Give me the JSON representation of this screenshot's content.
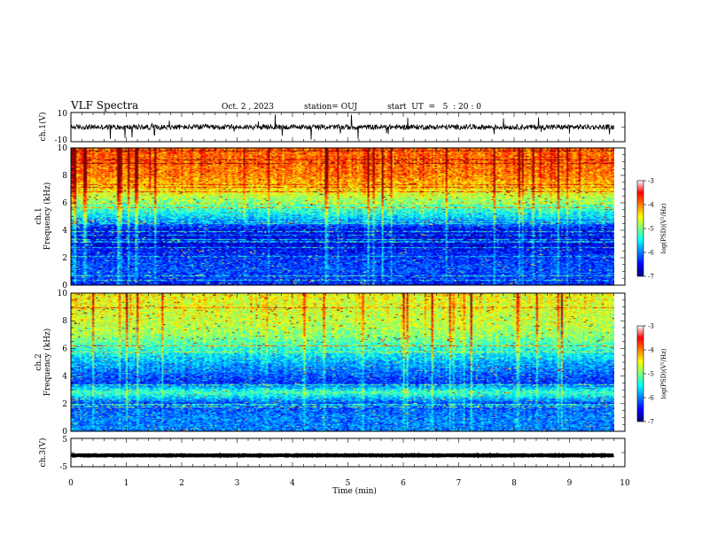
{
  "header": {
    "title": "VLF Spectra",
    "date": "Oct. 2 , 2023",
    "station": "station= OUJ",
    "start": "start  UT  =   5  : 20 : 0"
  },
  "chart_data": {
    "type": "heatmap",
    "xlabel": "Time  (min)",
    "xlim": [
      0,
      10
    ],
    "xticks": [
      "0",
      "1",
      "2",
      "3",
      "4",
      "5",
      "6",
      "7",
      "8",
      "9",
      "10"
    ],
    "data_end_min": 9.8,
    "panels": [
      {
        "name": "ch1-waveform",
        "type": "line",
        "ylabel": "ch.1(V)",
        "ylim": [
          -10,
          10
        ],
        "yticks": [
          "10",
          "-10"
        ],
        "baseline_v": 0
      },
      {
        "name": "ch1-spectrogram",
        "type": "heatmap",
        "ylabel_line1": "ch.1",
        "ylabel_line2": "Frequency  (kHz)",
        "ylim": [
          0,
          10
        ],
        "yticks": [
          "0",
          "2",
          "4",
          "6",
          "8",
          "10"
        ],
        "colorbar_label": "log(PSD)(V²/Hz)",
        "colorbar_range": [
          -7,
          -3
        ],
        "colorbar_ticks": [
          "-3",
          "-4",
          "-5",
          "-6",
          "-7"
        ],
        "spectral_profile": [
          {
            "f_khz": 0.0,
            "level": -6.4
          },
          {
            "f_khz": 1.0,
            "level": -6.2
          },
          {
            "f_khz": 2.0,
            "level": -6.3
          },
          {
            "f_khz": 3.0,
            "level": -6.6
          },
          {
            "f_khz": 4.0,
            "level": -6.5
          },
          {
            "f_khz": 5.0,
            "level": -5.6
          },
          {
            "f_khz": 6.0,
            "level": -5.0
          },
          {
            "f_khz": 7.0,
            "level": -4.4
          },
          {
            "f_khz": 8.0,
            "level": -4.0
          },
          {
            "f_khz": 9.0,
            "level": -3.9
          },
          {
            "f_khz": 10.0,
            "level": -3.9
          }
        ]
      },
      {
        "name": "ch2-spectrogram",
        "type": "heatmap",
        "ylabel_line1": "ch.2",
        "ylabel_line2": "Frequency  (kHz)",
        "ylim": [
          0,
          10
        ],
        "yticks": [
          "0",
          "2",
          "4",
          "6",
          "8",
          "10"
        ],
        "colorbar_label": "log(PSD)(V²/Hz)",
        "colorbar_range": [
          -7,
          -3
        ],
        "colorbar_ticks": [
          "-3",
          "-4",
          "-5",
          "-6",
          "-7"
        ],
        "spectral_profile": [
          {
            "f_khz": 0.0,
            "level": -6.0
          },
          {
            "f_khz": 1.0,
            "level": -6.0
          },
          {
            "f_khz": 2.0,
            "level": -6.2
          },
          {
            "f_khz": 2.8,
            "level": -5.2
          },
          {
            "f_khz": 3.5,
            "level": -6.3
          },
          {
            "f_khz": 5.0,
            "level": -5.8
          },
          {
            "f_khz": 6.0,
            "level": -5.3
          },
          {
            "f_khz": 7.0,
            "level": -4.9
          },
          {
            "f_khz": 8.0,
            "level": -4.7
          },
          {
            "f_khz": 9.0,
            "level": -4.6
          },
          {
            "f_khz": 10.0,
            "level": -4.5
          }
        ]
      },
      {
        "name": "ch3-waveform",
        "type": "line",
        "ylabel": "ch.3(V)",
        "ylim": [
          -5,
          5
        ],
        "yticks": [
          "5",
          "-5"
        ],
        "baseline_v": -1
      }
    ]
  }
}
